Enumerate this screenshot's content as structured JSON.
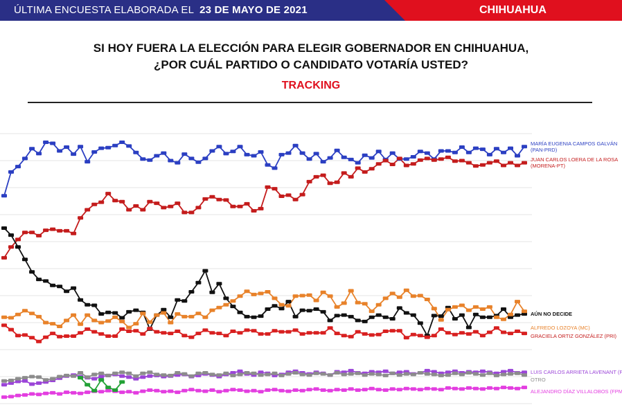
{
  "header": {
    "survey_prefix": "ÚLTIMA ENCUESTA ELABORADA EL",
    "survey_date": "23 DE MAYO DE 2021",
    "state": "CHIHUAHUA",
    "colors": {
      "left_band": "#2a2f86",
      "right_band": "#e0101e"
    }
  },
  "question": {
    "line1": "SI HOY FUERA LA ELECCIÓN PARA ELEGIR GOBERNADOR EN CHIHUAHUA,",
    "line2": "¿POR CUÁL PARTIDO O CANDIDATO VOTARÍA USTED?",
    "tracking": "TRACKING"
  },
  "chart_data": {
    "type": "line",
    "title": "",
    "xlabel": "",
    "ylabel": "",
    "ylim": [
      0,
      50
    ],
    "grid": true,
    "legend": "right",
    "series": [
      {
        "name": "MARÍA EUGENIA CAMPOS GALVÁN (PAN-PRD)",
        "color": "#2b3fc2",
        "values": [
          38.5,
          42.9,
          43.9,
          45.4,
          47.2,
          46.3,
          48.4,
          48.2,
          46.8,
          47.5,
          46.2,
          47.6,
          44.8,
          46.6,
          47.3,
          47.4,
          47.8,
          48.4,
          47.7,
          46.5,
          45.3,
          45.1,
          45.9,
          46.4,
          45.0,
          44.6,
          46.2,
          45.4,
          44.7,
          45.4,
          46.8,
          47.6,
          46.3,
          46.7,
          47.6,
          46.1,
          45.9,
          46.6,
          44.2,
          43.6,
          46.1,
          46.4,
          47.8,
          46.4,
          45.3,
          46.3,
          44.8,
          45.5,
          46.9,
          45.6,
          45.2,
          44.6,
          46.0,
          45.5,
          46.7,
          45.2,
          46.4,
          45.3,
          45.3,
          45.7,
          46.7,
          46.4,
          45.3,
          46.8,
          46.8,
          46.5,
          47.5,
          46.5,
          47.3,
          47.1,
          46.1,
          47.2,
          46.5,
          47.3,
          45.9,
          47.6
        ]
      },
      {
        "name": "JUAN CARLOS LOERA DE LA ROSA (MORENA-PT)",
        "color": "#c41c1c",
        "values": [
          27.0,
          29.0,
          30.4,
          31.7,
          31.7,
          31.1,
          32.1,
          32.3,
          32.0,
          32.0,
          31.5,
          34.4,
          35.9,
          36.9,
          37.3,
          38.9,
          37.6,
          37.4,
          35.9,
          36.6,
          35.9,
          37.4,
          37.1,
          36.3,
          36.5,
          37.1,
          35.4,
          35.4,
          36.3,
          37.9,
          38.3,
          37.8,
          37.7,
          36.5,
          36.5,
          37.0,
          35.7,
          36.1,
          40.1,
          39.8,
          38.4,
          38.6,
          37.8,
          38.7,
          41.1,
          42.0,
          42.3,
          40.8,
          41.0,
          42.7,
          42.0,
          43.6,
          42.9,
          43.5,
          44.4,
          45.0,
          44.3,
          45.4,
          44.1,
          44.4,
          45.1,
          45.4,
          45.1,
          45.3,
          45.6,
          44.9,
          45.0,
          44.6,
          44.0,
          44.2,
          44.6,
          44.9,
          44.1,
          44.6,
          44.1,
          44.6
        ]
      },
      {
        "name": "AÚN NO DECIDE",
        "color": "#111111",
        "values": [
          32.5,
          31.2,
          29.0,
          26.7,
          24.4,
          23.0,
          22.7,
          21.9,
          21.7,
          20.8,
          21.4,
          19.2,
          18.3,
          18.2,
          16.6,
          16.9,
          16.8,
          15.9,
          17.0,
          17.3,
          16.9,
          13.8,
          16.4,
          17.4,
          16.0,
          19.2,
          19.0,
          20.7,
          22.4,
          24.6,
          20.6,
          22.2,
          19.5,
          18.0,
          16.9,
          16.1,
          16.0,
          16.2,
          17.5,
          18.1,
          17.6,
          18.9,
          16.1,
          17.3,
          17.2,
          17.5,
          17.0,
          15.4,
          16.3,
          16.4,
          16.1,
          15.4,
          15.2,
          16.0,
          16.4,
          16.0,
          15.7,
          17.7,
          16.8,
          16.4,
          14.9,
          12.6,
          16.3,
          16.2,
          17.8,
          15.7,
          16.4,
          14.1,
          16.5,
          16.0,
          16.0,
          16.3,
          17.5,
          16.0,
          16.4,
          16.6
        ]
      },
      {
        "name": "ALFREDO LOZOYA (MC)",
        "color": "#e8822a",
        "values": [
          16.0,
          15.9,
          16.5,
          17.2,
          16.7,
          16.1,
          15.0,
          14.8,
          14.3,
          15.4,
          16.4,
          14.7,
          16.4,
          15.4,
          15.0,
          15.3,
          16.0,
          15.2,
          14.1,
          14.8,
          16.7,
          15.1,
          16.4,
          16.8,
          15.0,
          16.6,
          16.1,
          16.1,
          16.7,
          16.0,
          17.3,
          17.8,
          18.3,
          19.0,
          19.9,
          20.8,
          20.2,
          20.4,
          20.7,
          19.5,
          18.3,
          18.1,
          19.9,
          20.0,
          20.1,
          19.1,
          20.6,
          19.9,
          17.9,
          18.6,
          20.9,
          18.7,
          18.5,
          17.1,
          18.3,
          19.5,
          20.4,
          19.7,
          21.0,
          19.9,
          20.0,
          19.3,
          17.6,
          15.5,
          17.4,
          17.9,
          18.2,
          17.3,
          17.9,
          17.5,
          17.9,
          16.0,
          15.6,
          16.5,
          18.9,
          17.1
        ]
      },
      {
        "name": "GRACIELA ORTIZ GONZÁLEZ (PRI)",
        "color": "#d82020",
        "values": [
          14.5,
          13.7,
          12.6,
          12.7,
          12.2,
          11.5,
          12.3,
          13.0,
          12.4,
          12.5,
          12.5,
          13.1,
          13.8,
          13.3,
          12.9,
          12.5,
          12.5,
          13.8,
          13.4,
          13.5,
          12.9,
          13.9,
          13.3,
          13.1,
          13.0,
          13.4,
          12.6,
          12.3,
          13.0,
          13.6,
          13.1,
          13.0,
          12.6,
          13.4,
          13.1,
          13.6,
          13.5,
          12.9,
          12.9,
          13.5,
          13.3,
          13.3,
          13.6,
          12.9,
          13.1,
          13.1,
          13.1,
          14.0,
          13.0,
          12.6,
          12.4,
          13.3,
          12.9,
          12.7,
          12.8,
          13.4,
          13.5,
          13.5,
          12.2,
          12.8,
          12.6,
          12.3,
          12.6,
          13.8,
          13.1,
          12.8,
          13.1,
          12.9,
          13.3,
          12.6,
          13.2,
          14.0,
          13.2,
          13.0,
          13.4,
          13.0
        ]
      },
      {
        "name": "LUIS CARLOS ARRIETA LAVENANT (PES)",
        "color": "#9b45d8",
        "values": [
          3.5,
          3.8,
          4.1,
          4.2,
          3.6,
          3.8,
          4.0,
          4.3,
          4.7,
          5.1,
          5.3,
          5.0,
          4.8,
          4.6,
          5.0,
          5.2,
          5.4,
          5.1,
          4.9,
          4.6,
          4.9,
          5.1,
          5.2,
          5.0,
          5.1,
          5.3,
          5.4,
          5.0,
          5.2,
          5.5,
          5.3,
          5.0,
          5.4,
          5.7,
          6.0,
          5.5,
          5.3,
          5.8,
          5.6,
          5.2,
          5.4,
          5.8,
          6.0,
          5.7,
          5.5,
          5.8,
          5.6,
          5.3,
          5.9,
          5.8,
          6.1,
          5.7,
          5.6,
          5.9,
          5.8,
          6.0,
          5.6,
          5.8,
          5.9,
          5.5,
          5.7,
          6.1,
          5.9,
          5.6,
          5.8,
          6.0,
          5.7,
          5.9,
          5.8,
          6.0,
          5.8,
          5.6,
          5.9,
          6.1,
          5.7,
          5.8
        ]
      },
      {
        "name": "OTRO",
        "color": "#8c8c8c",
        "values": [
          4.2,
          4.3,
          4.6,
          4.8,
          5.0,
          4.9,
          4.4,
          4.6,
          5.0,
          5.2,
          5.1,
          5.7,
          4.9,
          5.4,
          5.6,
          5.2,
          5.6,
          5.8,
          5.6,
          5.1,
          5.6,
          5.8,
          5.4,
          5.3,
          5.2,
          5.7,
          5.5,
          5.1,
          5.6,
          5.7,
          5.4,
          5.3,
          5.6,
          5.2,
          5.4,
          5.7,
          5.6,
          5.3,
          5.4,
          5.6,
          5.2,
          5.5,
          5.7,
          5.4,
          5.3,
          5.6,
          5.5,
          5.3,
          5.7,
          5.4,
          5.5,
          5.6,
          5.3,
          5.5,
          5.4,
          5.2,
          5.6,
          5.3,
          5.5,
          5.4,
          5.7,
          5.5,
          5.4,
          5.2,
          5.3,
          5.6,
          5.4,
          5.7,
          5.5,
          5.3,
          5.6,
          5.2,
          5.4,
          5.5,
          5.6,
          5.3
        ]
      },
      {
        "name": "ALEJANDRO DÍAZ VILLALOBOS (FPM)",
        "color": "#e33ee0",
        "values": [
          1.2,
          1.3,
          1.5,
          1.6,
          1.8,
          1.7,
          1.9,
          2.0,
          1.8,
          2.1,
          2.0,
          1.9,
          2.1,
          2.3,
          2.2,
          2.4,
          2.3,
          2.1,
          2.2,
          2.0,
          2.3,
          2.5,
          2.4,
          2.2,
          2.3,
          2.1,
          2.4,
          2.6,
          2.4,
          2.3,
          2.5,
          2.2,
          2.4,
          2.6,
          2.5,
          2.3,
          2.4,
          2.2,
          2.5,
          2.6,
          2.4,
          2.3,
          2.5,
          2.4,
          2.6,
          2.7,
          2.5,
          2.4,
          2.6,
          2.5,
          2.7,
          2.5,
          2.6,
          2.8,
          2.6,
          2.5,
          2.7,
          2.6,
          2.8,
          2.7,
          2.6,
          2.8,
          2.7,
          2.6,
          2.9,
          2.8,
          2.7,
          2.9,
          2.8,
          2.7,
          2.9,
          2.8,
          3.0,
          2.9,
          2.8,
          3.0
        ]
      },
      {
        "name": "",
        "color": "#22a135",
        "values": [
          null,
          null,
          null,
          null,
          null,
          null,
          null,
          null,
          null,
          null,
          null,
          4.8,
          3.5,
          2.4,
          4.4,
          3.0,
          2.5,
          4.0,
          null,
          null,
          null,
          null,
          null,
          null,
          null,
          null,
          null,
          null,
          null,
          null,
          null,
          null,
          null,
          null,
          null,
          null,
          null,
          null,
          null,
          null,
          null,
          null,
          null,
          null,
          null,
          null,
          null,
          null,
          null,
          null,
          null,
          null,
          null,
          null,
          null,
          null,
          null,
          null,
          null,
          null,
          null,
          null,
          null,
          null,
          null,
          null,
          null,
          null,
          null,
          null,
          null,
          null,
          null,
          null,
          null,
          null
        ]
      }
    ],
    "legend_labels": [
      {
        "lines": [
          "MARÍA EUGENIA CAMPOS GALVÁN",
          "(PAN-PRD)"
        ],
        "color": "#2b3fc2",
        "weight": "normal"
      },
      {
        "lines": [
          "JUAN CARLOS LOERA  DE LA ROSA",
          "(MORENA-PT)"
        ],
        "color": "#c41c1c",
        "weight": "normal"
      },
      {
        "lines": [
          "AÚN NO DECIDE"
        ],
        "color": "#111111",
        "weight": "bold"
      },
      {
        "lines": [
          "ALFREDO LOZOYA (MC)"
        ],
        "color": "#e8822a",
        "weight": "normal"
      },
      {
        "lines": [
          "GRACIELA ORTIZ GONZÁLEZ (PRI)"
        ],
        "color": "#c41c1c",
        "weight": "normal"
      },
      {
        "lines": [
          "LUIS CARLOS ARRIETA LAVENANT (PES)"
        ],
        "color": "#9b45d8",
        "weight": "normal"
      },
      {
        "lines": [
          "OTRO"
        ],
        "color": "#8c8c8c",
        "weight": "normal"
      },
      {
        "lines": [
          "ALEJANDRO DÍAZ VILLALOBOS (FPM)"
        ],
        "color": "#e33ee0",
        "weight": "normal"
      }
    ]
  }
}
